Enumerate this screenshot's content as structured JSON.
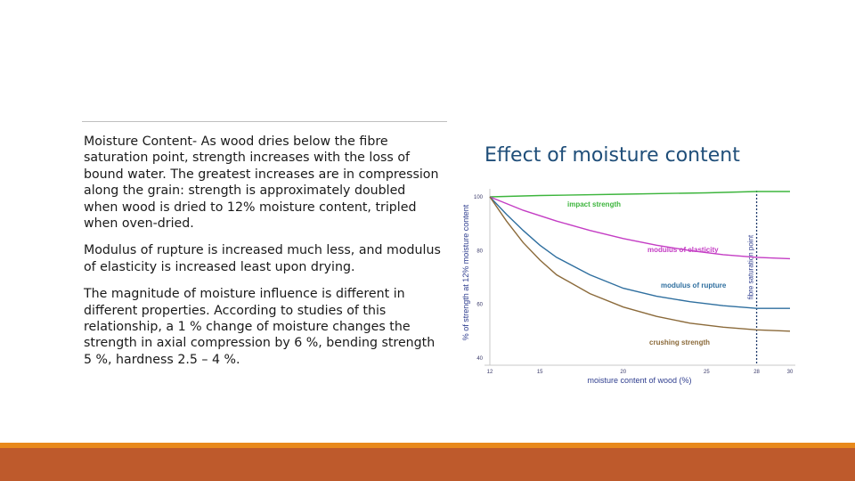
{
  "slide": {
    "paragraphs": [
      "Moisture Content- As wood dries below the fibre saturation point, strength increases with the loss of bound water. The greatest increases are in compression along the grain: strength is approximately doubled when wood is dried to 12% moisture content, tripled when oven-dried.",
      "Modulus of rupture is increased much less, and modulus of elasticity is increased least upon drying.",
      "The magnitude of moisture influence is different in different properties. According to studies of this relationship, a 1 % change of moisture changes the strength in axial compression by 6 %, bending strength 5 %, hardness 2.5 – 4 %."
    ]
  },
  "colors": {
    "title": "#1f4e79",
    "impact": "#3db53d",
    "elasticity": "#c43dc4",
    "rupture": "#2f6f9f",
    "crushing": "#8b6a3a",
    "fsp_line": "#1f3a6b",
    "bar_orange": "#e8891c",
    "bar_brown": "#be5a2c"
  },
  "chart_data": {
    "type": "line",
    "title": "Effect of moisture content",
    "xlabel": "moisture content of wood (%)",
    "ylabel": "% of strength at 12% moisture content",
    "x_ticks": [
      12,
      15,
      20,
      25,
      28,
      30
    ],
    "y_ticks": [
      40,
      60,
      80,
      100
    ],
    "xlim": [
      12,
      30
    ],
    "ylim": [
      40,
      100
    ],
    "vline": {
      "x": 28,
      "label": "fibre saturation point"
    },
    "series": [
      {
        "name": "impact strength",
        "color_key": "impact",
        "x": [
          12,
          15,
          20,
          25,
          28,
          30
        ],
        "y": [
          100,
          100.5,
          101,
          101.5,
          102,
          102
        ]
      },
      {
        "name": "modulus of elasticity",
        "color_key": "elasticity",
        "x": [
          12,
          14,
          16,
          18,
          20,
          22,
          24,
          26,
          28,
          30
        ],
        "y": [
          100,
          95,
          91,
          87.5,
          84.5,
          82,
          80,
          78.5,
          77.5,
          77
        ]
      },
      {
        "name": "modulus of rupture",
        "color_key": "rupture",
        "x": [
          12,
          13,
          14,
          15,
          16,
          18,
          20,
          22,
          24,
          26,
          28,
          30
        ],
        "y": [
          100,
          93.5,
          87.5,
          82,
          77.5,
          71,
          66,
          63,
          61,
          59.5,
          58.5,
          58.5
        ]
      },
      {
        "name": "crushing strength",
        "color_key": "crushing",
        "x": [
          12,
          13,
          14,
          15,
          16,
          18,
          20,
          22,
          24,
          26,
          28,
          30
        ],
        "y": [
          100,
          91,
          83,
          76.5,
          71,
          64,
          59,
          55.5,
          53,
          51.5,
          50.5,
          50
        ]
      }
    ]
  }
}
